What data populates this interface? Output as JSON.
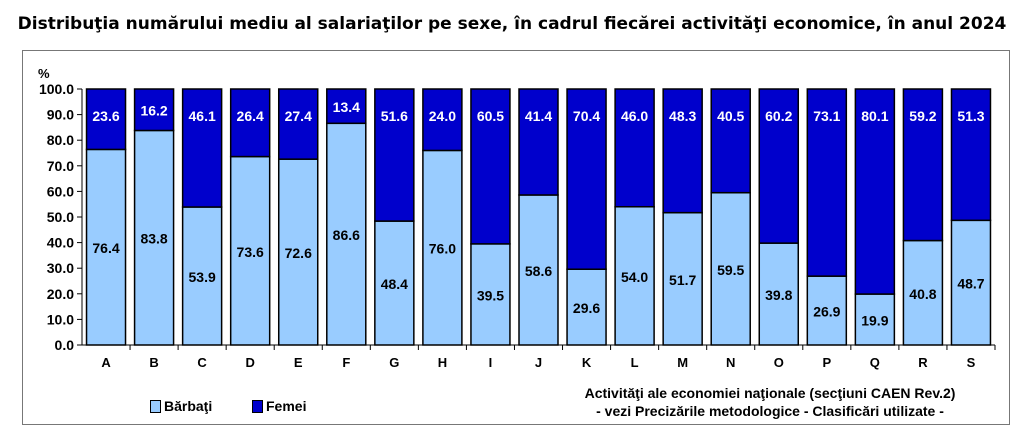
{
  "chart_data": {
    "type": "bar",
    "stacked": true,
    "title": "Distribuţia numărului mediu al salariaţilor pe sexe, în cadrul fiecărei activităţi economice, în anul 2024",
    "ylabel": "%",
    "xlabel": "Activităţi ale economiei naţionale (secţiuni CAEN Rev.2)",
    "xlabel_note": "- vezi Precizările metodologice - Clasificări utilizate -",
    "ylim": [
      0,
      100
    ],
    "yticks": [
      "0.0",
      "10.0",
      "20.0",
      "30.0",
      "40.0",
      "50.0",
      "60.0",
      "70.0",
      "80.0",
      "90.0",
      "100.0"
    ],
    "categories": [
      "A",
      "B",
      "C",
      "D",
      "E",
      "F",
      "G",
      "H",
      "I",
      "J",
      "K",
      "L",
      "M",
      "N",
      "O",
      "P",
      "Q",
      "R",
      "S"
    ],
    "series": [
      {
        "name": "Bărbaţi",
        "color": "#99ccff",
        "values": [
          76.4,
          83.8,
          53.9,
          73.6,
          72.6,
          86.6,
          48.4,
          76.0,
          39.5,
          58.6,
          29.6,
          54.0,
          51.7,
          59.5,
          39.8,
          26.9,
          19.9,
          40.8,
          48.7
        ]
      },
      {
        "name": "Femei",
        "color": "#0000cc",
        "values": [
          23.6,
          16.2,
          46.1,
          26.4,
          27.4,
          13.4,
          51.6,
          24.0,
          60.5,
          41.4,
          70.4,
          46.0,
          48.3,
          40.5,
          60.2,
          73.1,
          80.1,
          59.2,
          51.3
        ]
      }
    ],
    "legend_position": "bottom-left",
    "grid": false
  }
}
